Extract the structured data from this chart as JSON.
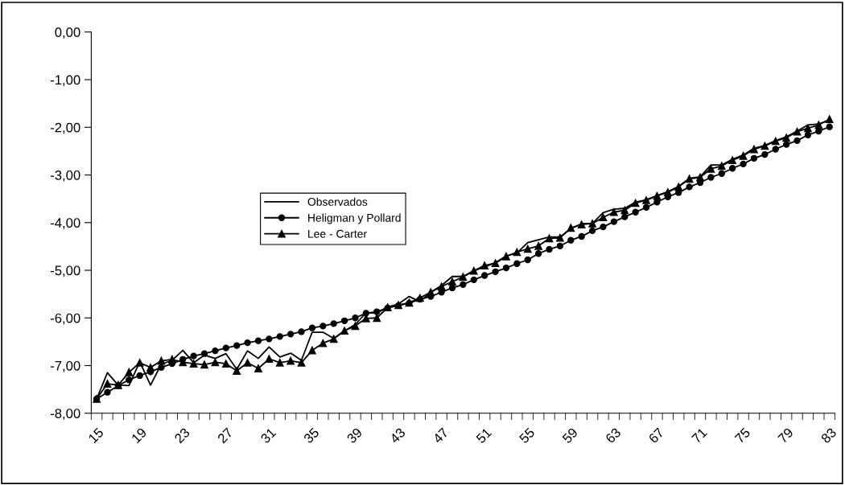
{
  "chart_data": {
    "type": "line",
    "categories": [
      "15",
      null,
      null,
      null,
      "19",
      null,
      null,
      null,
      "23",
      null,
      null,
      null,
      "27",
      null,
      null,
      null,
      "31",
      null,
      null,
      null,
      "35",
      null,
      null,
      null,
      "39",
      null,
      null,
      null,
      "43",
      null,
      null,
      null,
      "47",
      null,
      null,
      null,
      "51",
      null,
      null,
      null,
      "55",
      null,
      null,
      null,
      "59",
      null,
      null,
      null,
      "63",
      null,
      null,
      null,
      "67",
      null,
      null,
      null,
      "71",
      null,
      null,
      null,
      "75",
      null,
      null,
      null,
      "79",
      null,
      null,
      null,
      "83"
    ],
    "series": [
      {
        "name": "Observados",
        "color": "#000000",
        "marker": "none",
        "values": [
          -7.7,
          -7.15,
          -7.41,
          -7.42,
          -6.92,
          -7.41,
          -6.97,
          -6.89,
          -6.68,
          -6.94,
          -6.78,
          -6.85,
          -6.75,
          -7.08,
          -6.69,
          -6.85,
          -6.61,
          -6.82,
          -6.74,
          -6.89,
          -6.3,
          -6.3,
          -6.43,
          -6.27,
          -6.14,
          -5.89,
          -5.9,
          -5.77,
          -5.71,
          -5.55,
          -5.66,
          -5.46,
          -5.32,
          -5.13,
          -5.13,
          -5.01,
          -4.93,
          -4.84,
          -4.7,
          -4.64,
          -4.42,
          -4.36,
          -4.3,
          -4.3,
          -4.13,
          -4.02,
          -4.02,
          -3.79,
          -3.72,
          -3.7,
          -3.57,
          -3.52,
          -3.43,
          -3.35,
          -3.24,
          -3.07,
          -3.04,
          -2.79,
          -2.79,
          -2.67,
          -2.58,
          -2.44,
          -2.38,
          -2.28,
          -2.2,
          -2.08,
          -1.95,
          -1.93,
          -1.85
        ]
      },
      {
        "name": "Heligman y Pollard",
        "color": "#000000",
        "marker": "circle",
        "values": [
          -7.7,
          -7.56,
          -7.42,
          -7.3,
          -7.21,
          -7.13,
          -7.04,
          -6.96,
          -6.87,
          -6.8,
          -6.75,
          -6.69,
          -6.63,
          -6.58,
          -6.52,
          -6.48,
          -6.44,
          -6.39,
          -6.34,
          -6.29,
          -6.21,
          -6.17,
          -6.12,
          -6.06,
          -6.0,
          -5.9,
          -5.87,
          -5.79,
          -5.74,
          -5.69,
          -5.61,
          -5.55,
          -5.46,
          -5.37,
          -5.3,
          -5.2,
          -5.11,
          -5.03,
          -4.95,
          -4.86,
          -4.78,
          -4.65,
          -4.56,
          -4.49,
          -4.37,
          -4.29,
          -4.17,
          -4.09,
          -3.98,
          -3.88,
          -3.78,
          -3.68,
          -3.57,
          -3.46,
          -3.37,
          -3.25,
          -3.16,
          -3.05,
          -2.97,
          -2.86,
          -2.77,
          -2.65,
          -2.57,
          -2.46,
          -2.36,
          -2.28,
          -2.16,
          -2.08,
          -1.99
        ]
      },
      {
        "name": "Lee - Carter",
        "color": "#000000",
        "marker": "triangle",
        "values": [
          -7.7,
          -7.38,
          -7.41,
          -7.14,
          -6.94,
          -7.04,
          -6.9,
          -6.87,
          -6.93,
          -6.96,
          -6.98,
          -6.93,
          -6.96,
          -7.11,
          -6.94,
          -7.06,
          -6.86,
          -6.94,
          -6.9,
          -6.94,
          -6.68,
          -6.53,
          -6.44,
          -6.27,
          -6.17,
          -6.01,
          -6.0,
          -5.78,
          -5.73,
          -5.68,
          -5.58,
          -5.46,
          -5.34,
          -5.24,
          -5.14,
          -5.01,
          -4.9,
          -4.85,
          -4.71,
          -4.62,
          -4.55,
          -4.49,
          -4.33,
          -4.32,
          -4.11,
          -4.04,
          -4.02,
          -3.89,
          -3.78,
          -3.74,
          -3.59,
          -3.53,
          -3.44,
          -3.36,
          -3.25,
          -3.08,
          -3.05,
          -2.87,
          -2.81,
          -2.69,
          -2.6,
          -2.46,
          -2.39,
          -2.29,
          -2.22,
          -2.09,
          -2.02,
          -1.95,
          -1.83
        ]
      }
    ],
    "ylim": [
      -8,
      0
    ],
    "yticks": [
      {
        "value": 0,
        "label": "0,00"
      },
      {
        "value": -1,
        "label": "-1,00"
      },
      {
        "value": -2,
        "label": "-2,00"
      },
      {
        "value": -3,
        "label": "-3,00"
      },
      {
        "value": -4,
        "label": "-4,00"
      },
      {
        "value": -5,
        "label": "-5,00"
      },
      {
        "value": -6,
        "label": "-6,00"
      },
      {
        "value": -7,
        "label": "-7,00"
      },
      {
        "value": -8,
        "label": "-8,00"
      }
    ],
    "legend": "center",
    "grid": false
  }
}
